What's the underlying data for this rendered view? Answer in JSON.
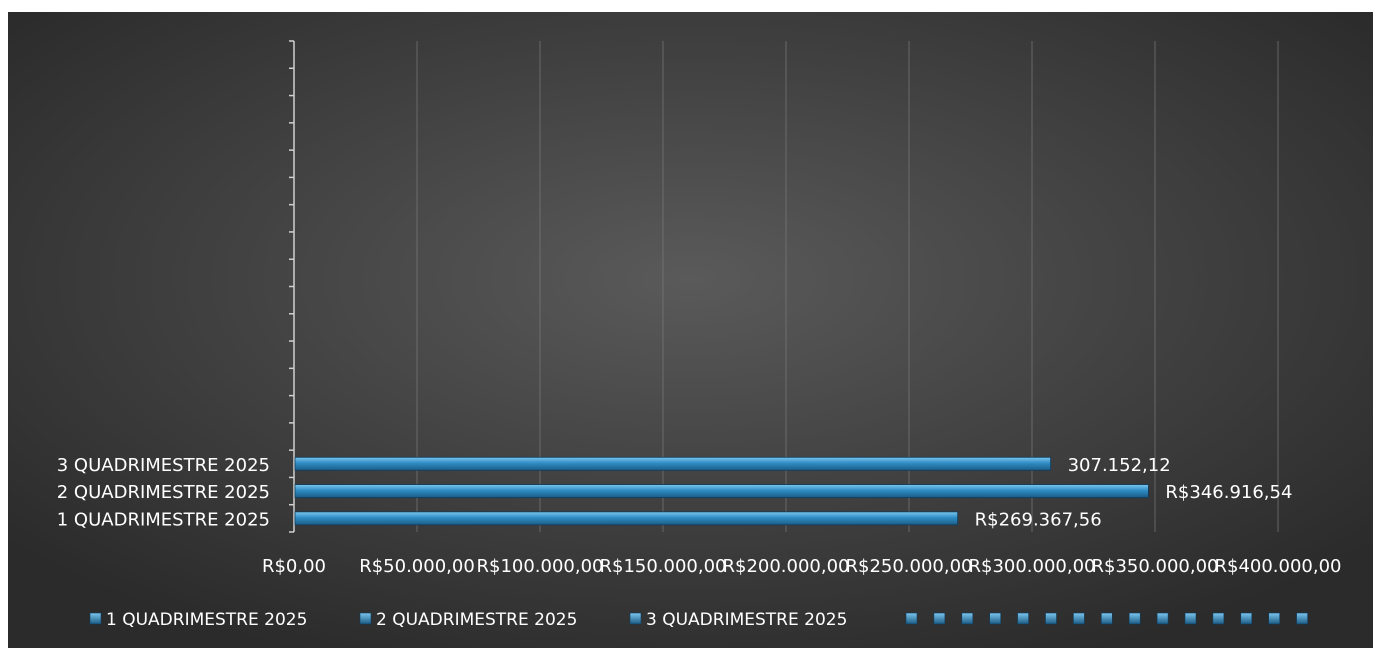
{
  "chart_data": {
    "type": "bar",
    "orientation": "horizontal",
    "categories": [
      "1 QUADRIMESTRE 2025",
      "2 QUADRIMESTRE 2025",
      "3 QUADRIMESTRE 2025"
    ],
    "values": [
      269367.56,
      346916.54,
      307152.12
    ],
    "data_labels": [
      "R$269.367,56",
      "R$346.916,54",
      "307.152,12"
    ],
    "title": "",
    "xlabel": "",
    "ylabel": "",
    "xlim": [
      0,
      400000
    ],
    "x_ticks": [
      0,
      50000,
      100000,
      150000,
      200000,
      250000,
      300000,
      350000,
      400000
    ],
    "x_tick_labels": [
      "R$0,00",
      "R$50.000,00",
      "R$100.000,00",
      "R$150.000,00",
      "R$200.000,00",
      "R$250.000,00",
      "R$300.000,00",
      "R$350.000,00",
      "R$400.000,00"
    ],
    "grid": true,
    "legend": {
      "position": "bottom",
      "entries": [
        "1 QUADRIMESTRE 2025",
        "2 QUADRIMESTRE 2025",
        "3 QUADRIMESTRE 2025"
      ],
      "empty_markers": 15
    },
    "colors": {
      "bar": "#2f8cc4",
      "bar_light": "#7cc6ee",
      "bar_dark": "#1b5c86",
      "background_center": "#5a5a5a",
      "background_edge": "#2b2b2b",
      "text": "#ffffff",
      "grid": "#7a7a7a"
    }
  }
}
